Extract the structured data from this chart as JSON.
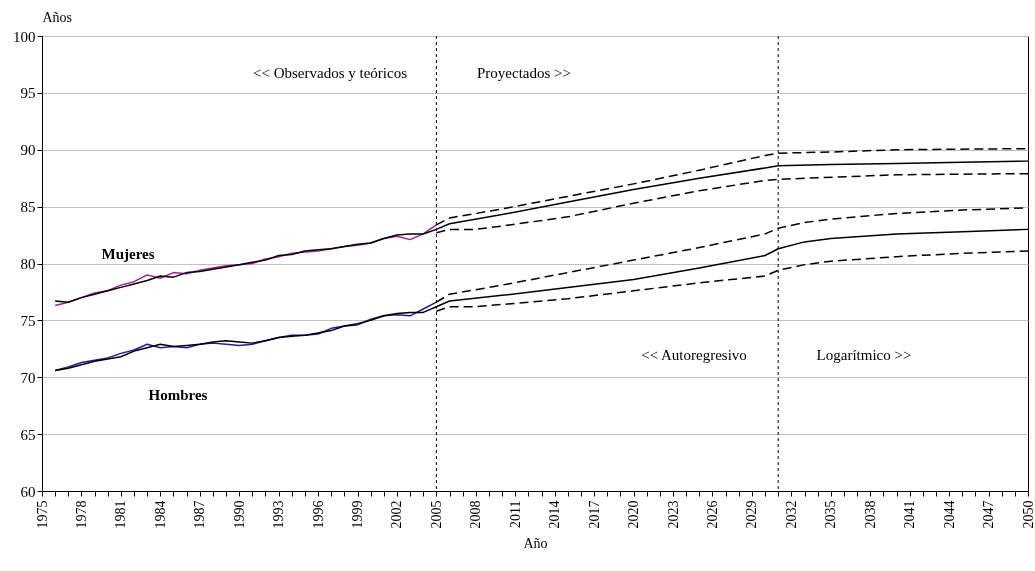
{
  "chart_data": {
    "type": "line",
    "xlabel": "Año",
    "ylabel": "Años",
    "xlim": [
      1975,
      2050
    ],
    "ylim": [
      60,
      100
    ],
    "xticks": [
      1975,
      {
        "value": 1976,
        "label": null
      },
      {
        "value": 1977,
        "label": null
      },
      1978,
      {
        "value": 1979,
        "label": null
      },
      {
        "value": 1980,
        "label": null
      },
      1981,
      {
        "value": 1982,
        "label": null
      },
      {
        "value": 1983,
        "label": null
      },
      1984,
      {
        "value": 1985,
        "label": null
      },
      {
        "value": 1986,
        "label": null
      },
      1987,
      {
        "value": 1988,
        "label": null
      },
      {
        "value": 1989,
        "label": null
      },
      1990,
      {
        "value": 1991,
        "label": null
      },
      {
        "value": 1992,
        "label": null
      },
      1993,
      {
        "value": 1994,
        "label": null
      },
      {
        "value": 1995,
        "label": null
      },
      1996,
      {
        "value": 1997,
        "label": null
      },
      {
        "value": 1998,
        "label": null
      },
      1999,
      {
        "value": 2000,
        "label": null
      },
      {
        "value": 2001,
        "label": null
      },
      2002,
      {
        "value": 2003,
        "label": null
      },
      {
        "value": 2004,
        "label": null
      },
      2005,
      {
        "value": 2006,
        "label": null
      },
      {
        "value": 2007,
        "label": null
      },
      2008,
      {
        "value": 2009,
        "label": null
      },
      {
        "value": 2010,
        "label": null
      },
      2011,
      {
        "value": 2012,
        "label": null
      },
      {
        "value": 2013,
        "label": null
      },
      2014,
      {
        "value": 2015,
        "label": null
      },
      {
        "value": 2016,
        "label": null
      },
      2017,
      {
        "value": 2018,
        "label": null
      },
      {
        "value": 2019,
        "label": null
      },
      2020,
      {
        "value": 2021,
        "label": null
      },
      {
        "value": 2022,
        "label": null
      },
      2023,
      {
        "value": 2024,
        "label": null
      },
      {
        "value": 2025,
        "label": null
      },
      2026,
      {
        "value": 2027,
        "label": null
      },
      {
        "value": 2028,
        "label": null
      },
      2029,
      {
        "value": 2030,
        "label": null
      },
      {
        "value": 2031,
        "label": null
      },
      2032,
      {
        "value": 2033,
        "label": null
      },
      {
        "value": 2034,
        "label": null
      },
      2035,
      {
        "value": 2036,
        "label": null
      },
      {
        "value": 2037,
        "label": null
      },
      2038,
      {
        "value": 2039,
        "label": null
      },
      {
        "value": 2040,
        "label": null
      },
      2041,
      {
        "value": 2042,
        "label": null
      },
      {
        "value": 2043,
        "label": null
      },
      2044,
      {
        "value": 2045,
        "label": null
      },
      {
        "value": 2046,
        "label": null
      },
      2047,
      {
        "value": 2048,
        "label": null
      },
      {
        "value": 2049,
        "label": null
      },
      2050
    ],
    "yticks": [
      60,
      65,
      70,
      75,
      80,
      85,
      90,
      95,
      100
    ],
    "grid": "y",
    "series": [
      {
        "color": "#a0219c",
        "x": [
          1976,
          1977,
          1978,
          1979,
          1980,
          1981,
          1982,
          1983,
          1984,
          1985,
          1986,
          1987,
          1988,
          1989,
          1990,
          1991,
          1992,
          1993,
          1994,
          1995,
          1996,
          1997,
          1998,
          1999,
          2000,
          2001,
          2002,
          2003,
          2004,
          2005
        ],
        "values": [
          76.3,
          76.6,
          77.0,
          77.4,
          77.6,
          78.1,
          78.4,
          79.0,
          78.7,
          79.2,
          79.1,
          79.4,
          79.6,
          79.8,
          79.9,
          80.0,
          80.4,
          80.6,
          80.9,
          81.0,
          81.1,
          81.3,
          81.5,
          81.6,
          81.8,
          82.2,
          82.4,
          82.1,
          82.6,
          83.4
        ]
      },
      {
        "color": "#1f1fa0",
        "x": [
          1976,
          1977,
          1978,
          1979,
          1980,
          1981,
          1982,
          1983,
          1984,
          1985,
          1986,
          1987,
          1988,
          1989,
          1990,
          1991,
          1992,
          1993,
          1994,
          1995,
          1996,
          1997,
          1998,
          1999,
          2000,
          2001,
          2002,
          2003,
          2004,
          2005
        ],
        "values": [
          70.6,
          70.9,
          71.3,
          71.5,
          71.7,
          72.1,
          72.4,
          72.9,
          72.6,
          72.7,
          72.6,
          72.9,
          73.0,
          72.9,
          72.8,
          72.9,
          73.2,
          73.5,
          73.7,
          73.7,
          73.8,
          74.3,
          74.5,
          74.6,
          75.1,
          75.4,
          75.5,
          75.4,
          76.0,
          76.6
        ]
      },
      {
        "color": "#000000",
        "x": [
          1976,
          1977,
          1978,
          1979,
          1980,
          1981,
          1982,
          1983,
          1984,
          1985,
          1986,
          1987,
          1988,
          1989,
          1990,
          1991,
          1992,
          1993,
          1994,
          1995,
          1996,
          1997,
          1998,
          1999,
          2000,
          2001,
          2002,
          2003,
          2004,
          2005,
          2006,
          2010,
          2015,
          2020,
          2025,
          2030,
          2031,
          2035,
          2040,
          2045,
          2050
        ],
        "values": [
          76.7,
          76.6,
          77.0,
          77.3,
          77.6,
          77.9,
          78.2,
          78.5,
          78.9,
          78.8,
          79.2,
          79.3,
          79.5,
          79.7,
          79.9,
          80.1,
          80.3,
          80.7,
          80.8,
          81.1,
          81.2,
          81.3,
          81.5,
          81.7,
          81.8,
          82.2,
          82.5,
          82.6,
          82.6,
          83.0,
          83.5,
          84.3,
          85.4,
          86.5,
          87.5,
          88.4,
          88.6,
          88.7,
          88.8,
          88.9,
          89.0
        ]
      },
      {
        "color": "#000000",
        "x": [
          1976,
          1977,
          1978,
          1979,
          1980,
          1981,
          1982,
          1983,
          1984,
          1985,
          1986,
          1987,
          1988,
          1989,
          1990,
          1991,
          1992,
          1993,
          1994,
          1995,
          1996,
          1997,
          1998,
          1999,
          2000,
          2001,
          2002,
          2003,
          2004,
          2005,
          2006,
          2010,
          2015,
          2020,
          2025,
          2030,
          2031,
          2033,
          2035,
          2040,
          2045,
          2050
        ],
        "values": [
          70.6,
          70.8,
          71.1,
          71.4,
          71.6,
          71.8,
          72.3,
          72.6,
          72.9,
          72.7,
          72.8,
          72.9,
          73.1,
          73.2,
          73.1,
          73.0,
          73.2,
          73.5,
          73.6,
          73.7,
          73.9,
          74.1,
          74.5,
          74.7,
          75.0,
          75.4,
          75.6,
          75.7,
          75.7,
          76.2,
          76.7,
          77.2,
          77.9,
          78.6,
          79.6,
          80.7,
          81.3,
          81.9,
          82.2,
          82.6,
          82.8,
          83.0
        ]
      },
      {
        "color": "#000000",
        "line_style": "dashed",
        "x": [
          2005,
          2006,
          2010,
          2015,
          2020,
          2025,
          2030,
          2031,
          2035,
          2040,
          2050
        ],
        "values": [
          83.4,
          84.0,
          84.8,
          85.9,
          87.0,
          88.2,
          89.5,
          89.7,
          89.8,
          90.0,
          90.1
        ]
      },
      {
        "color": "#000000",
        "line_style": "dashed",
        "x": [
          2005,
          2006,
          2008,
          2010,
          2015,
          2020,
          2025,
          2030,
          2031,
          2040,
          2050
        ],
        "values": [
          82.7,
          83.0,
          83.0,
          83.3,
          84.1,
          85.3,
          86.4,
          87.3,
          87.4,
          87.8,
          87.9
        ]
      },
      {
        "color": "#000000",
        "line_style": "dashed",
        "x": [
          2005,
          2006,
          2010,
          2015,
          2020,
          2025,
          2030,
          2031,
          2033,
          2035,
          2040,
          2045,
          2050
        ],
        "values": [
          76.6,
          77.3,
          78.1,
          79.2,
          80.3,
          81.4,
          82.6,
          83.1,
          83.6,
          83.9,
          84.4,
          84.7,
          84.9
        ]
      },
      {
        "color": "#000000",
        "line_style": "dashed",
        "x": [
          2005,
          2006,
          2008,
          2010,
          2015,
          2020,
          2025,
          2030,
          2031,
          2033,
          2035,
          2040,
          2045,
          2050
        ],
        "values": [
          75.8,
          76.2,
          76.2,
          76.4,
          76.9,
          77.6,
          78.3,
          78.9,
          79.4,
          79.9,
          80.2,
          80.6,
          80.9,
          81.1
        ]
      }
    ],
    "ref_lines": [
      {
        "axis": "x",
        "value": 2005,
        "color": "#000000",
        "line_style": "dotted"
      },
      {
        "axis": "x",
        "value": 2031,
        "color": "#000000",
        "line_style": "dotted"
      }
    ],
    "annotations": [
      "<< Observados y teóricos",
      "Proyectados >>",
      "<< Autoregresivo",
      "Logarítmico >>",
      "Mujeres",
      "Hombres"
    ]
  }
}
